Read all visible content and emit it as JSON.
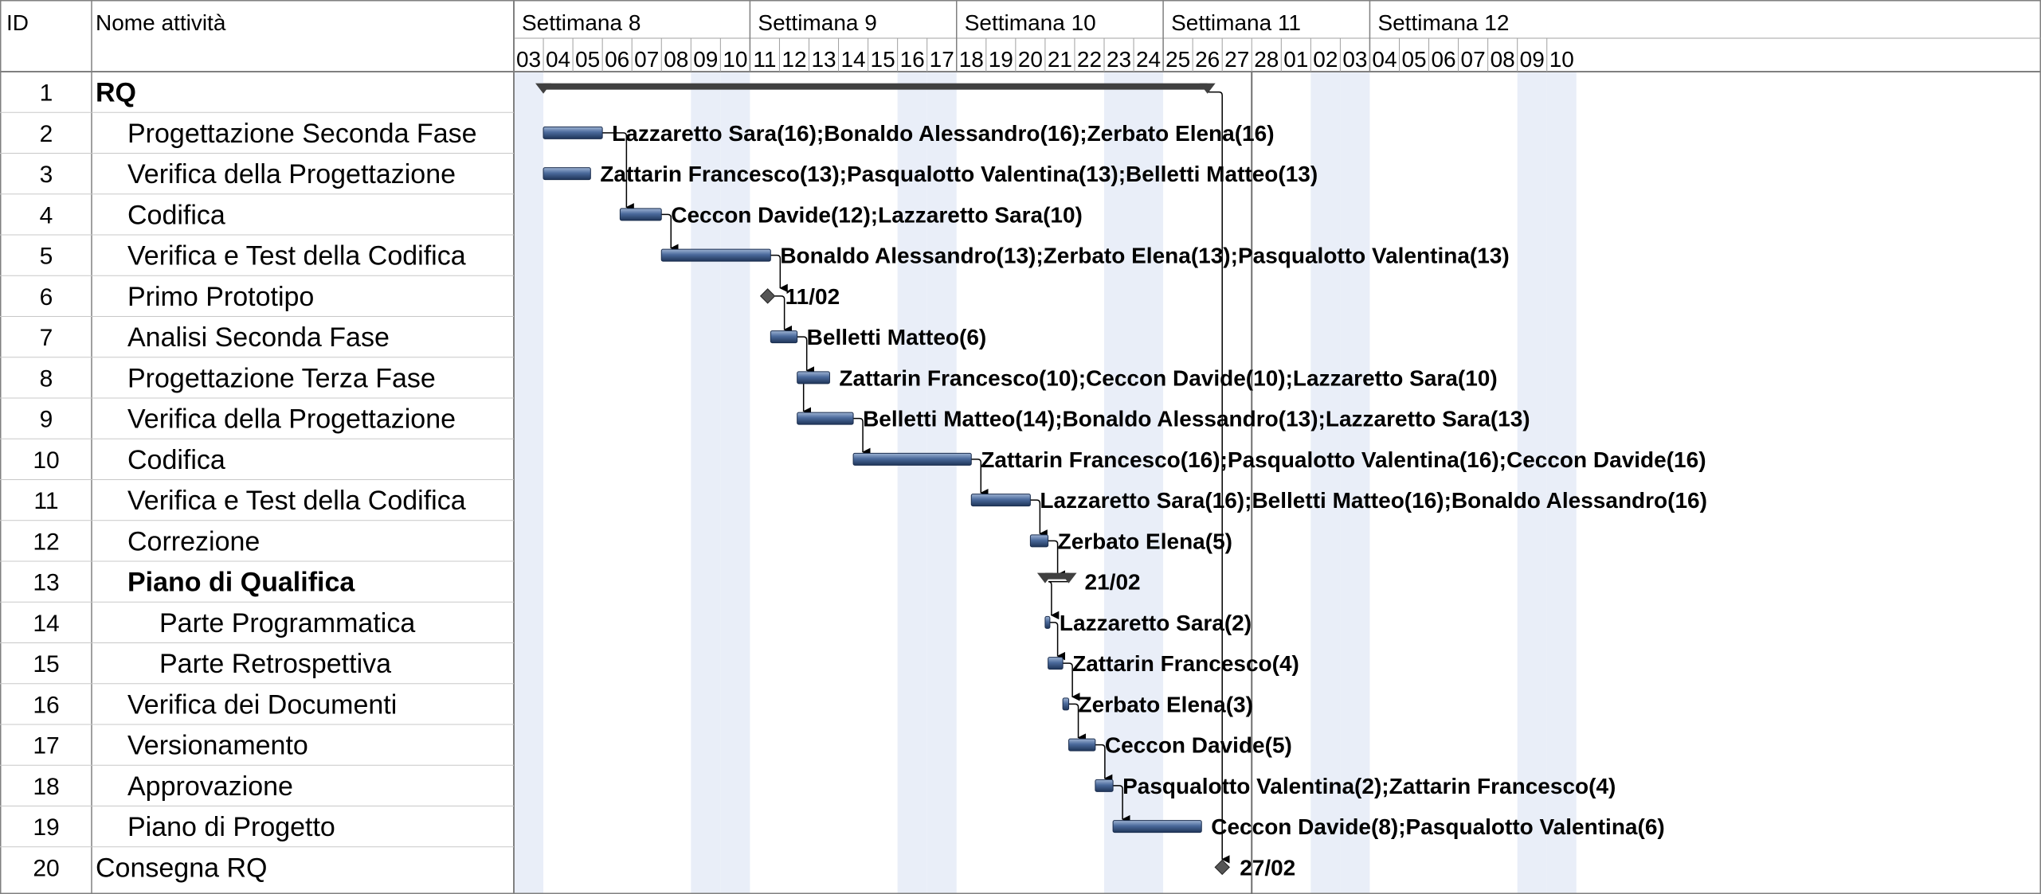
{
  "columns": {
    "id": "ID",
    "name": "Nome attività"
  },
  "weeks": [
    {
      "label": "Settimana 8",
      "start": 0,
      "days": 8
    },
    {
      "label": "Settimana 9",
      "start": 8,
      "days": 7
    },
    {
      "label": "Settimana 10",
      "start": 15,
      "days": 7
    },
    {
      "label": "Settimana 11",
      "start": 22,
      "days": 7
    },
    {
      "label": "Settimana 12",
      "start": 29,
      "days": 7
    }
  ],
  "days": [
    "03",
    "04",
    "05",
    "06",
    "07",
    "08",
    "09",
    "10",
    "11",
    "12",
    "13",
    "14",
    "15",
    "16",
    "17",
    "18",
    "19",
    "20",
    "21",
    "22",
    "23",
    "24",
    "25",
    "26",
    "27",
    "28",
    "01",
    "02",
    "03",
    "04",
    "05",
    "06",
    "07",
    "08",
    "09",
    "10"
  ],
  "weekend_days": [
    0,
    6,
    7,
    13,
    14,
    20,
    21,
    27,
    28,
    34,
    35
  ],
  "today_marker_day": 25,
  "colors": {
    "bar": "#3d5a8a",
    "bar_light": "#8fa6c9",
    "summary": "#404040",
    "weekend": "#e9eef8",
    "grid": "#c8c8c8"
  },
  "chart_data": {
    "type": "gantt",
    "axis_unit": "day index from 03 (Settimana 8)",
    "tasks": [
      {
        "id": "1",
        "name": "RQ",
        "level": 0,
        "bold": true,
        "kind": "summary",
        "start": 1,
        "end": 23.5,
        "label": ""
      },
      {
        "id": "2",
        "name": "Progettazione Seconda Fase",
        "level": 1,
        "kind": "task",
        "start": 1,
        "end": 3,
        "label": "Lazzaretto Sara(16);Bonaldo Alessandro(16);Zerbato Elena(16)"
      },
      {
        "id": "3",
        "name": "Verifica della Progettazione",
        "level": 1,
        "kind": "task",
        "start": 1,
        "end": 2.6,
        "label": "Zattarin Francesco(13);Pasqualotto Valentina(13);Belletti Matteo(13)"
      },
      {
        "id": "4",
        "name": "Codifica",
        "level": 1,
        "kind": "task",
        "start": 3.6,
        "end": 5,
        "label": "Ceccon Davide(12);Lazzaretto Sara(10)"
      },
      {
        "id": "5",
        "name": "Verifica e Test della Codifica",
        "level": 1,
        "kind": "task",
        "start": 5,
        "end": 8.7,
        "label": "Bonaldo Alessandro(13);Zerbato Elena(13);Pasqualotto Valentina(13)"
      },
      {
        "id": "6",
        "name": "Primo Prototipo",
        "level": 1,
        "kind": "milestone",
        "start": 8.6,
        "end": 8.6,
        "label": "11/02"
      },
      {
        "id": "7",
        "name": "Analisi Seconda Fase",
        "level": 1,
        "kind": "task",
        "start": 8.7,
        "end": 9.6,
        "label": "Belletti Matteo(6)"
      },
      {
        "id": "8",
        "name": "Progettazione Terza Fase",
        "level": 1,
        "kind": "task",
        "start": 9.6,
        "end": 10.7,
        "label": "Zattarin Francesco(10);Ceccon Davide(10);Lazzaretto Sara(10)"
      },
      {
        "id": "9",
        "name": "Verifica della Progettazione",
        "level": 1,
        "kind": "task",
        "start": 9.6,
        "end": 11.5,
        "label": "Belletti Matteo(14);Bonaldo Alessandro(13);Lazzaretto Sara(13)"
      },
      {
        "id": "10",
        "name": "Codifica",
        "level": 1,
        "kind": "task",
        "start": 11.5,
        "end": 15.5,
        "label": "Zattarin Francesco(16);Pasqualotto Valentina(16);Ceccon Davide(16)"
      },
      {
        "id": "11",
        "name": "Verifica e Test della Codifica",
        "level": 1,
        "kind": "task",
        "start": 15.5,
        "end": 17.5,
        "label": "Lazzaretto Sara(16);Belletti Matteo(16);Bonaldo Alessandro(16)"
      },
      {
        "id": "12",
        "name": "Correzione",
        "level": 1,
        "kind": "task",
        "start": 17.5,
        "end": 18.1,
        "label": "Zerbato Elena(5)"
      },
      {
        "id": "13",
        "name": "Piano di Qualifica",
        "level": 1,
        "bold": true,
        "kind": "summary",
        "start": 18,
        "end": 18.8,
        "label": "21/02"
      },
      {
        "id": "14",
        "name": "Parte Programmatica",
        "level": 2,
        "kind": "task",
        "start": 18,
        "end": 18.1,
        "label": "Lazzaretto Sara(2)"
      },
      {
        "id": "15",
        "name": "Parte Retrospettiva",
        "level": 2,
        "kind": "task",
        "start": 18.1,
        "end": 18.6,
        "label": "Zattarin Francesco(4)"
      },
      {
        "id": "16",
        "name": "Verifica dei Documenti",
        "level": 1,
        "kind": "task",
        "start": 18.6,
        "end": 18.8,
        "label": "Zerbato Elena(3)"
      },
      {
        "id": "17",
        "name": "Versionamento",
        "level": 1,
        "kind": "task",
        "start": 18.8,
        "end": 19.7,
        "label": "Ceccon Davide(5)"
      },
      {
        "id": "18",
        "name": "Approvazione",
        "level": 1,
        "kind": "task",
        "start": 19.7,
        "end": 20.3,
        "label": "Pasqualotto Valentina(2);Zattarin Francesco(4)"
      },
      {
        "id": "19",
        "name": "Piano di Progetto",
        "level": 1,
        "kind": "task",
        "start": 20.3,
        "end": 23.3,
        "label": "Ceccon Davide(8);Pasqualotto Valentina(6)"
      },
      {
        "id": "20",
        "name": "Consegna RQ",
        "level": 0,
        "kind": "milestone",
        "start": 24,
        "end": 24,
        "label": "27/02"
      }
    ],
    "links": [
      {
        "from": "2",
        "to": "4"
      },
      {
        "from": "4",
        "to": "5"
      },
      {
        "from": "5",
        "to": "6"
      },
      {
        "from": "6",
        "to": "7"
      },
      {
        "from": "7",
        "to": "8"
      },
      {
        "from": "8",
        "to": "9"
      },
      {
        "from": "9",
        "to": "10"
      },
      {
        "from": "10",
        "to": "11"
      },
      {
        "from": "11",
        "to": "12"
      },
      {
        "from": "12",
        "to": "13"
      },
      {
        "from": "13",
        "to": "14"
      },
      {
        "from": "14",
        "to": "15"
      },
      {
        "from": "15",
        "to": "16"
      },
      {
        "from": "16",
        "to": "17"
      },
      {
        "from": "17",
        "to": "18"
      },
      {
        "from": "18",
        "to": "19"
      },
      {
        "from": "1",
        "to": "20"
      }
    ]
  }
}
